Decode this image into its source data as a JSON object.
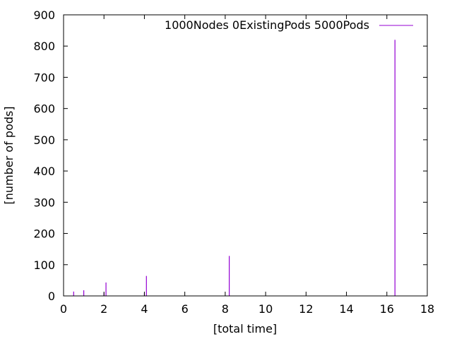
{
  "chart_data": {
    "type": "bar",
    "title": "",
    "xlabel": "[total time]",
    "ylabel": "[number of pods]",
    "xlim": [
      0,
      18
    ],
    "ylim": [
      0,
      900
    ],
    "x_ticks": [
      "0",
      "2",
      "4",
      "6",
      "8",
      "10",
      "12",
      "14",
      "16",
      "18"
    ],
    "y_ticks": [
      "0",
      "100",
      "200",
      "300",
      "400",
      "500",
      "600",
      "700",
      "800",
      "900"
    ],
    "grid": false,
    "legend_position": "top-right",
    "color": "#9400d3",
    "series": [
      {
        "name": "1000Nodes 0ExistingPods 5000Pods",
        "points": [
          {
            "x": 0.5,
            "y": 14
          },
          {
            "x": 1.0,
            "y": 18
          },
          {
            "x": 2.0,
            "y": 10
          },
          {
            "x": 2.1,
            "y": 43
          },
          {
            "x": 4.0,
            "y": 9
          },
          {
            "x": 4.1,
            "y": 64
          },
          {
            "x": 8.2,
            "y": 128
          },
          {
            "x": 16.4,
            "y": 820
          }
        ]
      }
    ]
  }
}
